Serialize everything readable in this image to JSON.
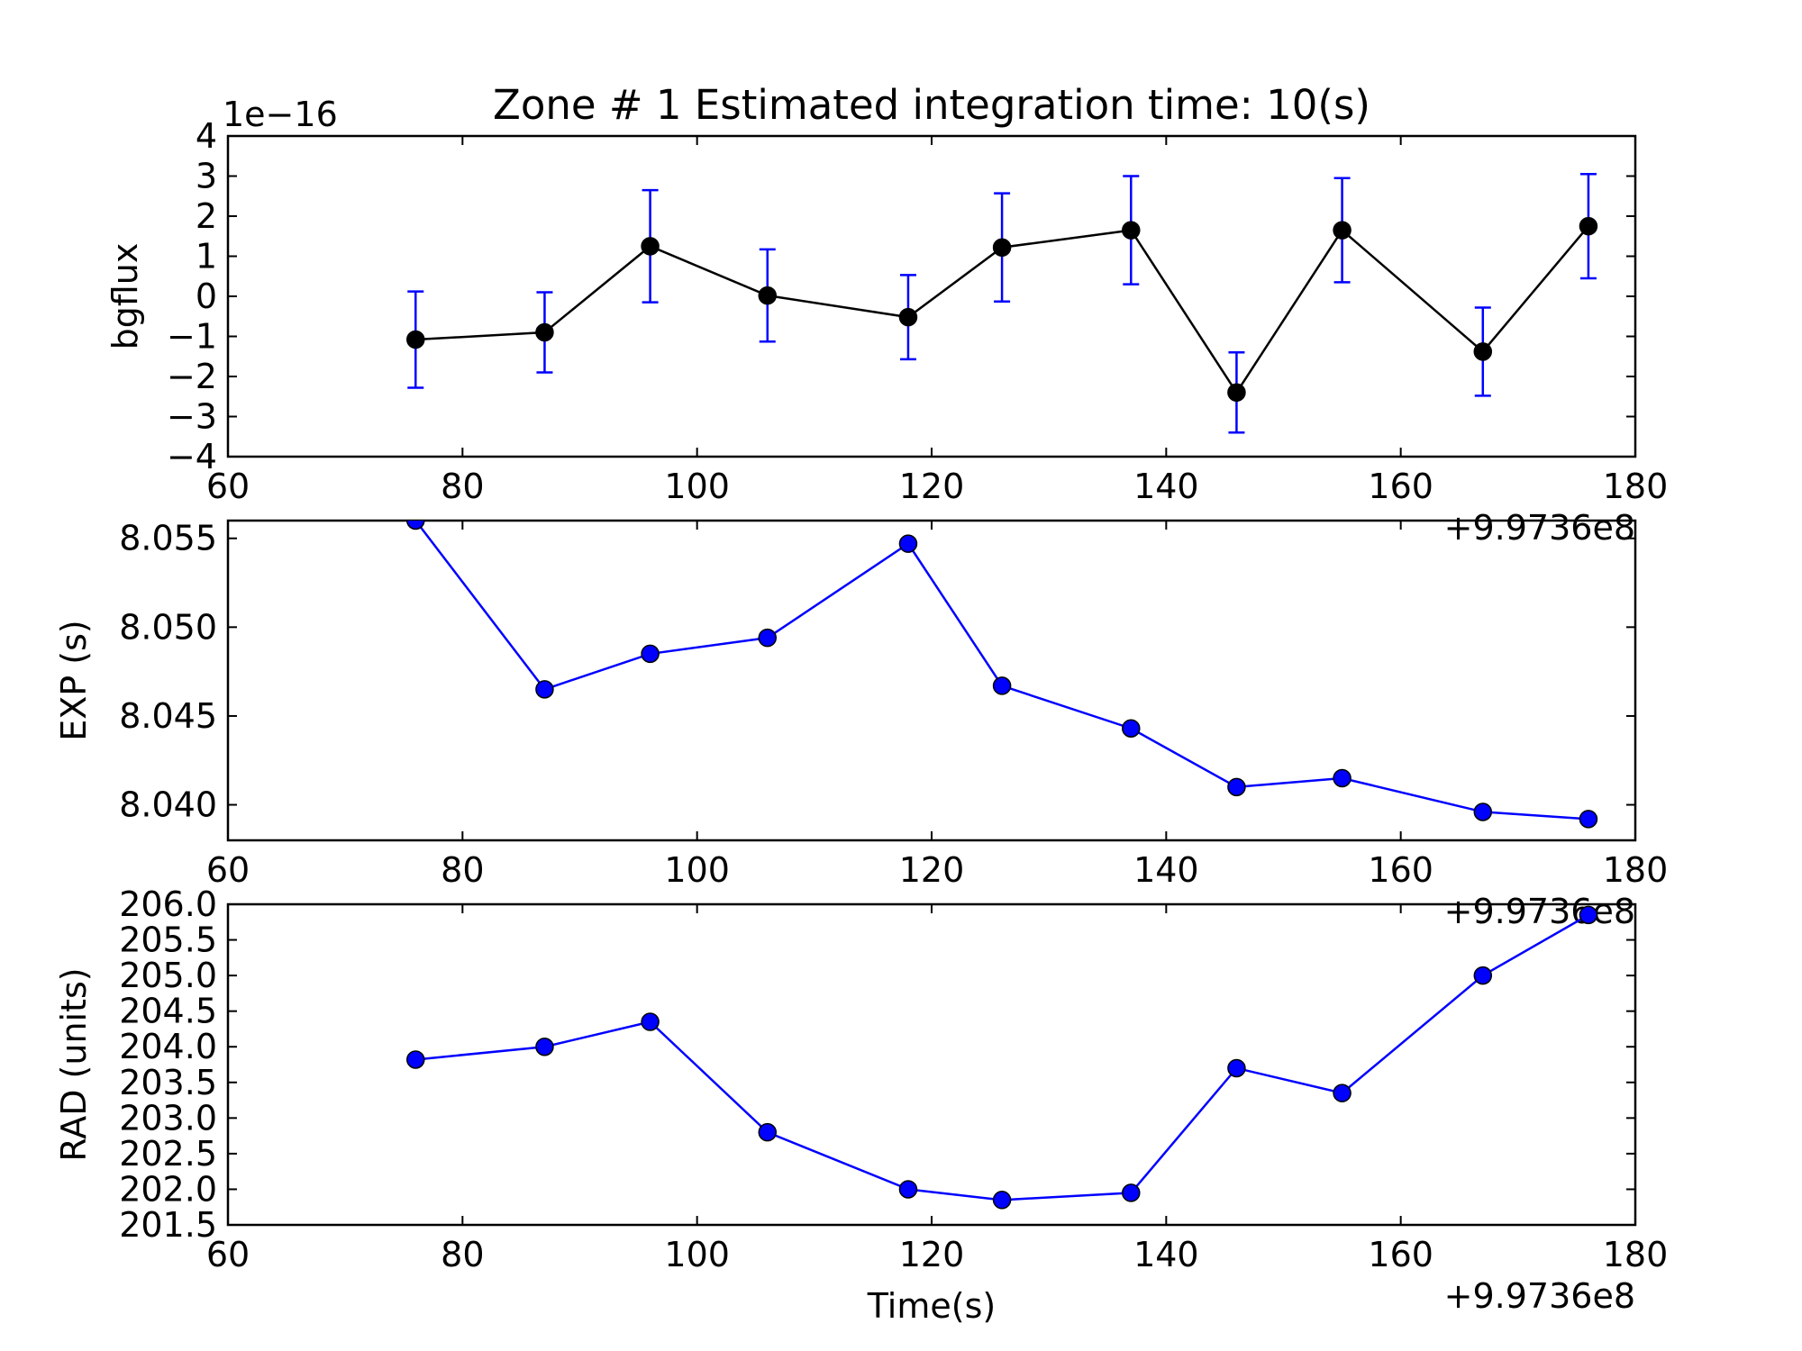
{
  "chart_data": [
    {
      "type": "line",
      "title": "Zone # 1 Estimated integration time: 10(s)",
      "xlabel": "",
      "ylabel": "bgflux",
      "y_multiplier_label": "1e−16",
      "x_offset_label": "+9.9736e8",
      "xlim": [
        60,
        180
      ],
      "ylim": [
        -4,
        4
      ],
      "x_ticks": [
        60,
        80,
        100,
        120,
        140,
        160,
        180
      ],
      "y_ticks": [
        -4,
        -3,
        -2,
        -1,
        0,
        1,
        2,
        3,
        4
      ],
      "y_tick_labels": [
        "−4",
        "−3",
        "−2",
        "−1",
        "0",
        "1",
        "2",
        "3",
        "4"
      ],
      "grid": false,
      "series": [
        {
          "color": "#000000",
          "error_color": "#0000ff",
          "x": [
            76,
            87,
            96,
            106,
            118,
            126,
            137,
            146,
            155,
            167,
            176
          ],
          "y": [
            -1.08,
            -0.9,
            1.25,
            0.02,
            -0.52,
            1.22,
            1.65,
            -2.4,
            1.65,
            -1.38,
            1.75
          ],
          "err": [
            1.2,
            1.0,
            1.4,
            1.15,
            1.05,
            1.35,
            1.35,
            1.0,
            1.3,
            1.1,
            1.3
          ]
        }
      ]
    },
    {
      "type": "line",
      "title": "",
      "xlabel": "",
      "ylabel": "EXP (s)",
      "x_offset_label": "+9.9736e8",
      "xlim": [
        60,
        180
      ],
      "ylim": [
        8.038,
        8.056
      ],
      "x_ticks": [
        60,
        80,
        100,
        120,
        140,
        160,
        180
      ],
      "y_ticks": [
        8.04,
        8.045,
        8.05,
        8.055
      ],
      "y_tick_labels": [
        "8.040",
        "8.045",
        "8.050",
        "8.055"
      ],
      "grid": false,
      "series": [
        {
          "color": "#0000ff",
          "x": [
            76,
            87,
            96,
            106,
            118,
            126,
            137,
            146,
            155,
            167,
            176
          ],
          "y": [
            8.056,
            8.0465,
            8.0485,
            8.0494,
            8.0547,
            8.0467,
            8.0443,
            8.041,
            8.0415,
            8.0396,
            8.0392
          ]
        }
      ]
    },
    {
      "type": "line",
      "title": "",
      "xlabel": "Time(s)",
      "ylabel": "RAD (units)",
      "x_offset_label": "+9.9736e8",
      "xlim": [
        60,
        180
      ],
      "ylim": [
        201.5,
        206.0
      ],
      "x_ticks": [
        60,
        80,
        100,
        120,
        140,
        160,
        180
      ],
      "y_ticks": [
        201.5,
        202.0,
        202.5,
        203.0,
        203.5,
        204.0,
        204.5,
        205.0,
        205.5,
        206.0
      ],
      "y_tick_labels": [
        "201.5",
        "202.0",
        "202.5",
        "203.0",
        "203.5",
        "204.0",
        "204.5",
        "205.0",
        "205.5",
        "206.0"
      ],
      "grid": false,
      "series": [
        {
          "color": "#0000ff",
          "x": [
            76,
            87,
            96,
            106,
            118,
            126,
            137,
            146,
            155,
            167,
            176
          ],
          "y": [
            203.82,
            204.0,
            204.35,
            202.8,
            202.0,
            201.85,
            201.95,
            203.7,
            203.35,
            205.0,
            205.85
          ]
        }
      ]
    }
  ]
}
